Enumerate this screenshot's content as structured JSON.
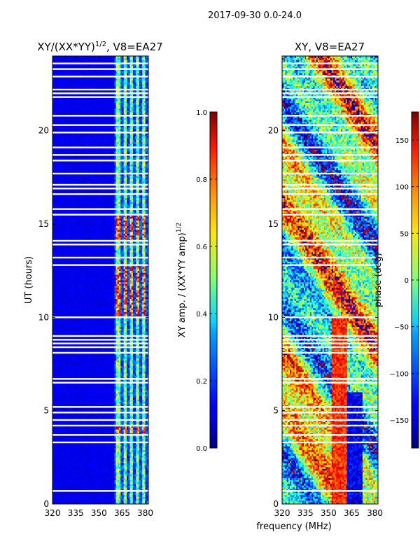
{
  "figure": {
    "suptitle": "2017-09-30 0.0-24.0",
    "shared_xlabel": "frequency (MHz)"
  },
  "chart_data": [
    {
      "type": "heatmap",
      "title": "XY/(XX*YY)^{1/2}, V8=EA27",
      "title_main": "XY/(XX*YY)",
      "title_sup": "1/2",
      "title_tail": ", V8=EA27",
      "xlabel": "",
      "ylabel": "UT (hours)",
      "xlim": [
        320,
        382
      ],
      "ylim": [
        0,
        24
      ],
      "xticks": [
        "320",
        "335",
        "350",
        "365",
        "380"
      ],
      "xtick_values": [
        320,
        335,
        350,
        365,
        380
      ],
      "yticks": [
        "0",
        "5",
        "10",
        "15",
        "20"
      ],
      "ytick_values": [
        0,
        5,
        10,
        15,
        20
      ],
      "colormap": "jet",
      "colorbar": {
        "label": "XY amp. / (XX*YY amp)^{1/2}",
        "label_main": "XY amp. / (XX*YY amp)",
        "label_sup": "1/2",
        "range": [
          0.0,
          1.0
        ],
        "ticks": [
          "0.0",
          "0.2",
          "0.4",
          "0.6",
          "0.8",
          "1.0"
        ],
        "tick_values": [
          0.0,
          0.2,
          0.4,
          0.6,
          0.8,
          1.0
        ]
      },
      "gap_hours": [
        0.7,
        3.3,
        3.7,
        4.2,
        4.5,
        4.9,
        5.2,
        6.5,
        6.7,
        8.1,
        8.4,
        8.6,
        8.8,
        9.0,
        10.0,
        12.8,
        13.2,
        13.9,
        14.1,
        15.5,
        15.8,
        16.6,
        16.9,
        17.1,
        17.7,
        18.4,
        18.7,
        19.1,
        19.9,
        20.3,
        20.8,
        21.8,
        22.0,
        22.2,
        22.9,
        23.3,
        23.6
      ],
      "bright_channels_mhz": [
        [
          361,
          364
        ],
        [
          366,
          368
        ],
        [
          370,
          372
        ],
        [
          374,
          376
        ],
        [
          378,
          380
        ]
      ],
      "strong_bands_hours": [
        [
          3.7,
          4.2
        ],
        [
          10.0,
          12.8
        ],
        [
          14.1,
          15.5
        ]
      ]
    },
    {
      "type": "heatmap",
      "title": "XY, V8=EA27",
      "xlabel": "frequency (MHz)",
      "ylabel": "",
      "xlim": [
        320,
        382
      ],
      "ylim": [
        0,
        24
      ],
      "xticks": [
        "320",
        "335",
        "350",
        "365",
        "380"
      ],
      "xtick_values": [
        320,
        335,
        350,
        365,
        380
      ],
      "yticks": [
        "0",
        "5",
        "10",
        "15",
        "20"
      ],
      "ytick_values": [
        0,
        5,
        10,
        15,
        20
      ],
      "colormap": "jet",
      "colorbar": {
        "label": "phase (deg)",
        "range": [
          -180,
          180
        ],
        "ticks": [
          "−150",
          "−100",
          "−50",
          "0",
          "50",
          "100",
          "150"
        ],
        "tick_values": [
          -150,
          -100,
          -50,
          0,
          50,
          100,
          150
        ]
      },
      "gap_hours": [
        0.7,
        3.3,
        3.7,
        4.2,
        4.5,
        4.9,
        5.2,
        6.5,
        6.7,
        8.1,
        8.4,
        8.6,
        8.8,
        9.0,
        10.0,
        12.8,
        13.2,
        13.9,
        14.1,
        15.5,
        15.8,
        16.6,
        16.9,
        17.1,
        17.7,
        18.4,
        18.7,
        19.1,
        19.9,
        20.3,
        20.8,
        21.8,
        22.0,
        22.2,
        22.9,
        23.3,
        23.6
      ]
    }
  ]
}
